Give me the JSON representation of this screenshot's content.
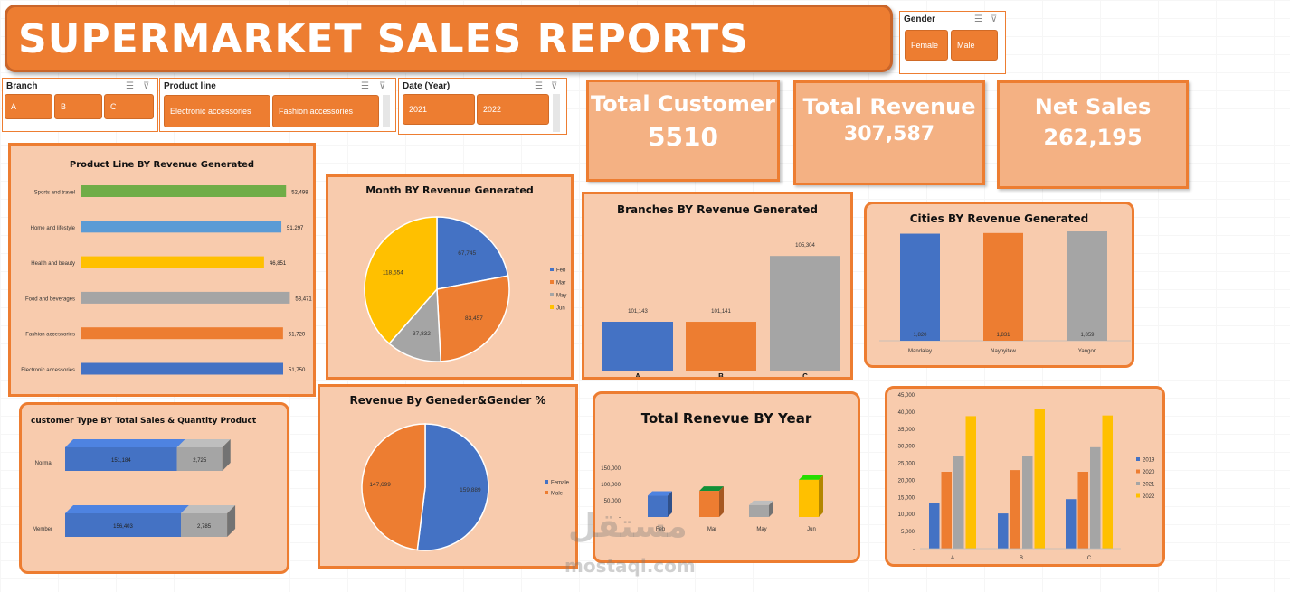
{
  "title": "SUPERMARKET SALES REPORTS",
  "slicers": {
    "gender": {
      "header": "Gender",
      "items": [
        "Female",
        "Male"
      ]
    },
    "branch": {
      "header": "Branch",
      "items": [
        "A",
        "B",
        "C"
      ]
    },
    "product_line": {
      "header": "Product line",
      "items": [
        "Electronic accessories",
        "Fashion accessories"
      ]
    },
    "date_year": {
      "header": "Date (Year)",
      "items": [
        "2021",
        "2022"
      ]
    }
  },
  "kpis": {
    "total_customer": {
      "label": "Total Customer",
      "value": "5510"
    },
    "total_revenue": {
      "label": "Total Revenue",
      "value": "307,587"
    },
    "net_sales": {
      "label": "Net Sales",
      "value": "262,195"
    }
  },
  "watermark": {
    "line1": "مستقل",
    "line2": "mostaql.com"
  },
  "chart_data": [
    {
      "id": "product_line",
      "type": "bar",
      "orientation": "horizontal",
      "title": "Product Line BY Revenue Generated",
      "categories": [
        "Sports and travel",
        "Home and lifestyle",
        "Health and beauty",
        "Food and beverages",
        "Fashion accessories",
        "Electronic accessories"
      ],
      "values": [
        52498,
        51297,
        46851,
        53471,
        51720,
        51750
      ],
      "value_labels": [
        "52,498",
        "51,297",
        "46,851",
        "53,471",
        "51,720",
        "51,750"
      ],
      "colors": [
        "#70ad47",
        "#5b9bd5",
        "#ffc000",
        "#a5a5a5",
        "#ed7d31",
        "#4472c4"
      ],
      "xlim": [
        0,
        55000
      ]
    },
    {
      "id": "month",
      "type": "pie",
      "title": "Month BY Revenue Generated",
      "categories": [
        "Feb",
        "Mar",
        "May",
        "Jun"
      ],
      "values": [
        67745,
        83457,
        37832,
        118554
      ],
      "value_labels": [
        "67,745",
        "83,457",
        "37,832",
        "118,554"
      ],
      "colors": [
        "#4472c4",
        "#ed7d31",
        "#a5a5a5",
        "#ffc000"
      ],
      "legend": "right"
    },
    {
      "id": "branches",
      "type": "bar",
      "title": "Branches BY Revenue Generated",
      "categories": [
        "A",
        "B",
        "C"
      ],
      "values": [
        101143,
        101141,
        105304
      ],
      "value_labels": [
        "101,143",
        "101,141",
        "105,304"
      ],
      "colors": [
        "#4472c4",
        "#ed7d31",
        "#a5a5a5"
      ],
      "ylim": [
        98000,
        106000
      ]
    },
    {
      "id": "cities",
      "type": "bar",
      "title": "Cities BY Revenue Generated",
      "categories": [
        "Mandalay",
        "Naypyitaw",
        "Yangon"
      ],
      "values": [
        1820,
        1831,
        1859
      ],
      "value_labels": [
        "1,820",
        "1,831",
        "1,859"
      ],
      "colors": [
        "#4472c4",
        "#ed7d31",
        "#a5a5a5"
      ],
      "ylim": [
        0,
        1859
      ]
    },
    {
      "id": "customer_type",
      "type": "bar",
      "orientation": "horizontal",
      "stacked": true,
      "title": "customer Type BY Total Sales & Quantity Product",
      "categories": [
        "Normal",
        "Member"
      ],
      "series": [
        {
          "values": [
            151184,
            156403
          ],
          "value_labels": [
            "151,184",
            "156,403"
          ],
          "color": "#4472c4"
        },
        {
          "values": [
            2725,
            2785
          ],
          "value_labels": [
            "2,725",
            "2,785"
          ],
          "color": "#a5a5a5"
        }
      ]
    },
    {
      "id": "gender",
      "type": "pie",
      "title": "Revenue By Geneder&Gender %",
      "categories": [
        "Female",
        "Male"
      ],
      "values": [
        159889,
        147699
      ],
      "value_labels": [
        "159,889",
        "147,699"
      ],
      "colors": [
        "#4472c4",
        "#ed7d31"
      ],
      "legend": "right"
    },
    {
      "id": "renevue_year",
      "type": "bar",
      "title": "Total Renevue BY Year",
      "categories": [
        "Feb",
        "Mar",
        "May",
        "Jun"
      ],
      "values": [
        67745,
        83457,
        37832,
        118554
      ],
      "colors": [
        "#4472c4",
        "#ed7d31",
        "#a5a5a5",
        "#ffc000"
      ],
      "yticks": [
        "150,000",
        "100,000",
        "50,000",
        "-"
      ],
      "ylim": [
        0,
        150000
      ]
    },
    {
      "id": "branch_year",
      "type": "bar",
      "title": "",
      "categories": [
        "A",
        "B",
        "C"
      ],
      "series": [
        {
          "name": "2019",
          "values": [
            13500,
            10300,
            14500
          ],
          "color": "#4472c4"
        },
        {
          "name": "2020",
          "values": [
            22500,
            23000,
            22500
          ],
          "color": "#ed7d31"
        },
        {
          "name": "2021",
          "values": [
            27000,
            27200,
            29700
          ],
          "color": "#a5a5a5"
        },
        {
          "name": "2022",
          "values": [
            38800,
            41000,
            39000
          ],
          "color": "#ffc000"
        }
      ],
      "yticks": [
        "45,000",
        "40,000",
        "35,000",
        "30,000",
        "25,000",
        "20,000",
        "15,000",
        "10,000",
        "5,000",
        "-"
      ],
      "ylim": [
        0,
        45000
      ],
      "legend": "right"
    }
  ]
}
